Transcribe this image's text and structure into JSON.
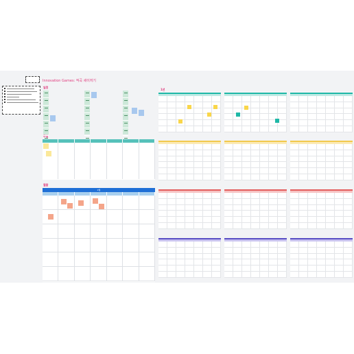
{
  "board": {
    "title": "Innovation Games: 작곡 세이저기",
    "sections": {
      "weekly": "일정",
      "daily": "주일",
      "monthly": "월말",
      "yearly": "1년"
    },
    "month_header": "2월",
    "colors": {
      "title": "#e0387b",
      "teal": "#1fb8a7",
      "yellow": "#f2c94c",
      "red": "#e35d5d",
      "purple": "#7a6fd6",
      "blue": "#1f6fd6",
      "sticky_yellow": "#f9d64a",
      "sticky_teal": "#1fb8a7",
      "sticky_blue": "#a8c8ee",
      "sticky_salmon": "#f4a58a"
    }
  }
}
